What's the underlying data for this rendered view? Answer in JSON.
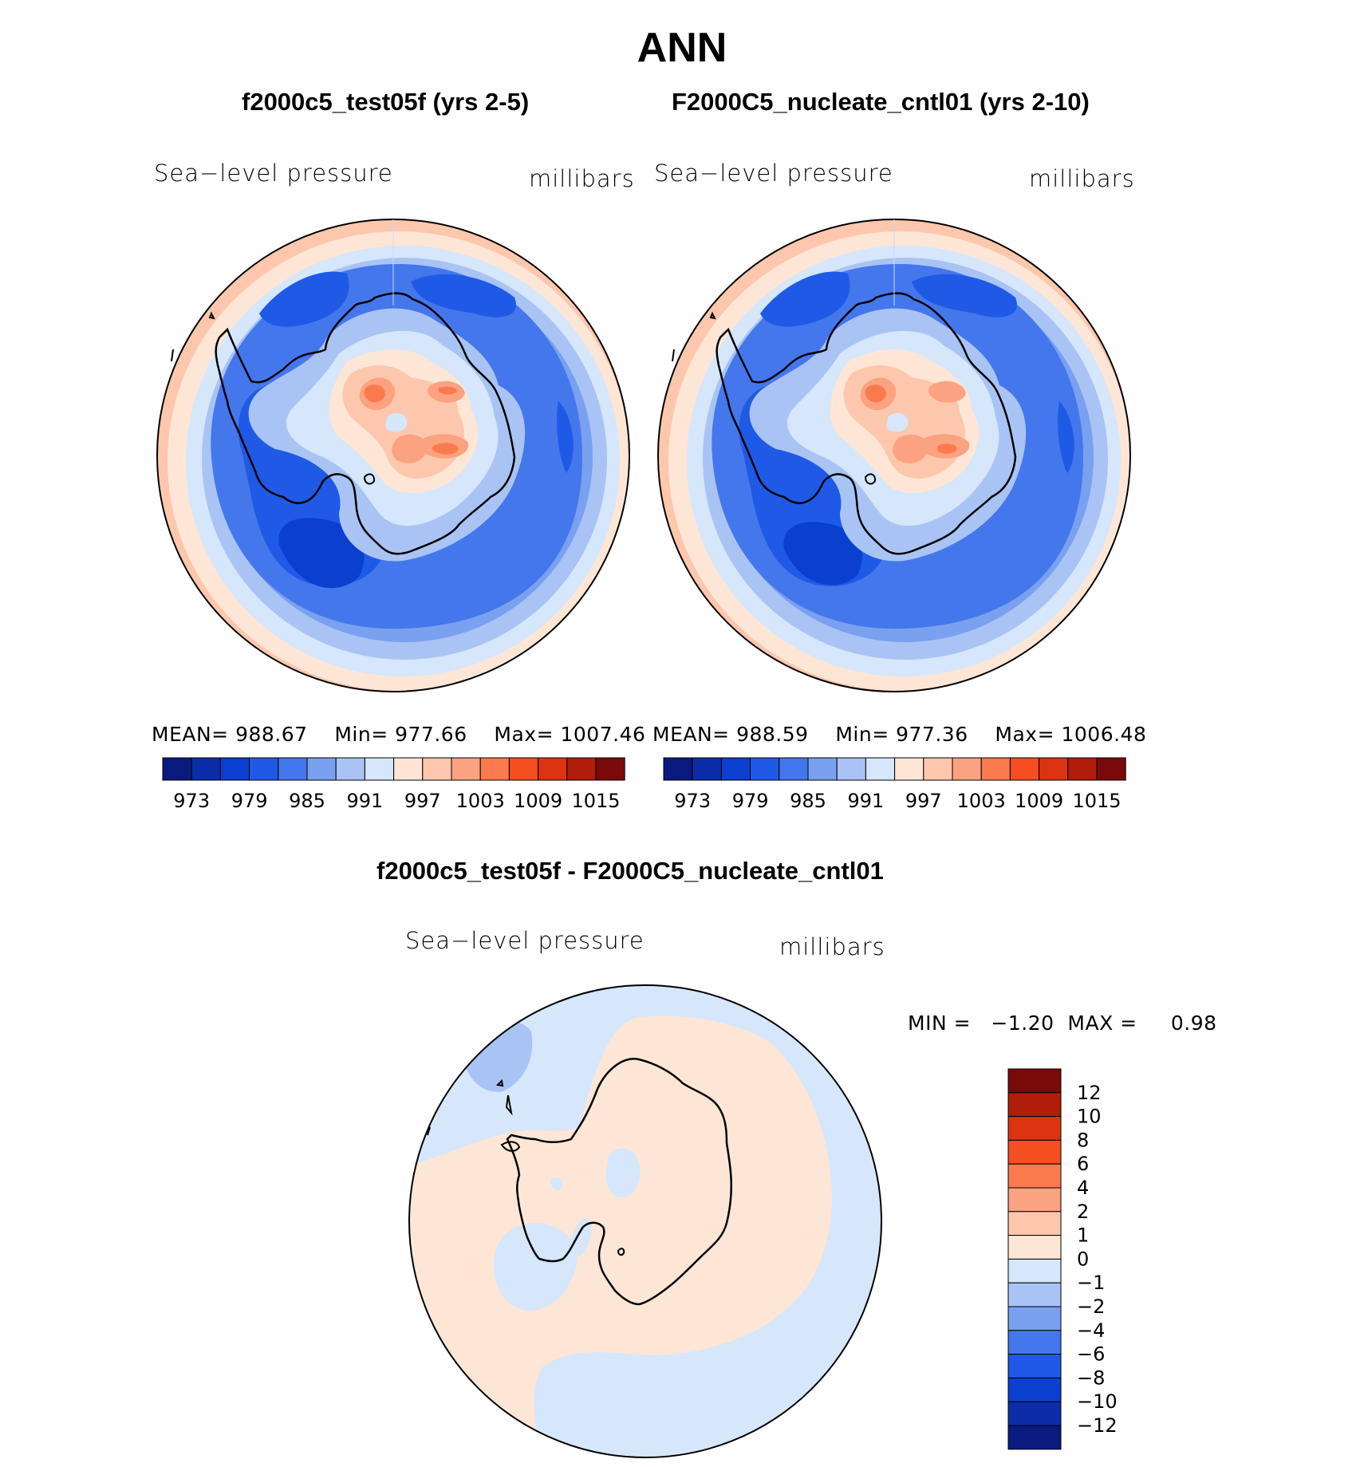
{
  "figure": {
    "title": "ANN"
  },
  "panels": [
    {
      "title": "f2000c5_test05f (yrs 2-5)",
      "variable": "Sea−level pressure",
      "units": "millibars",
      "stats": {
        "mean_label": "MEAN=",
        "mean": "988.67",
        "min_label": "Min=",
        "min": "977.66",
        "max_label": "Max=",
        "max": "1007.46"
      }
    },
    {
      "title": "F2000C5_nucleate_cntl01 (yrs 2-10)",
      "variable": "Sea−level pressure",
      "units": "millibars",
      "stats": {
        "mean_label": "MEAN=",
        "mean": "988.59",
        "min_label": "Min=",
        "min": "977.36",
        "max_label": "Max=",
        "max": "1006.48"
      }
    }
  ],
  "abs_colorbar": {
    "colors": [
      "#0a1a7e",
      "#0b2ea8",
      "#0a3fd0",
      "#1f5ae6",
      "#4477ec",
      "#7aa0f0",
      "#a9c3f4",
      "#d6e6fb",
      "#fde6d6",
      "#fcc7ad",
      "#fba281",
      "#fb7a4d",
      "#f54e1f",
      "#dc3410",
      "#b01e0a",
      "#7a0a0a"
    ],
    "tick_labels": [
      "973",
      "979",
      "985",
      "991",
      "997",
      "1003",
      "1009",
      "1015"
    ]
  },
  "diff_panel": {
    "title": "f2000c5_test05f - F2000C5_nucleate_cntl01",
    "variable": "Sea−level pressure",
    "units": "millibars",
    "minmax": {
      "min_label": "MIN =",
      "min": "−1.20",
      "max_label": "MAX =",
      "max": "0.98"
    }
  },
  "diff_colorbar": {
    "colors_top_to_bottom": [
      "#7a0a0a",
      "#b01e0a",
      "#dc3410",
      "#f54e1f",
      "#fb7a4d",
      "#fba281",
      "#fcc7ad",
      "#fde6d6",
      "#d6e6fb",
      "#a9c3f4",
      "#7aa0f0",
      "#4477ec",
      "#1f5ae6",
      "#0a3fd0",
      "#0b2ea8",
      "#0a1a7e"
    ],
    "tick_labels": [
      "12",
      "10",
      "8",
      "6",
      "4",
      "2",
      "1",
      "0",
      "−1",
      "−2",
      "−4",
      "−6",
      "−8",
      "−10",
      "−12"
    ]
  },
  "map_fills": {
    "ring_outer": "#fde6d6",
    "ring_pink": "#fcc7ad",
    "ocean_1": "#d6e6fb",
    "ocean_2": "#a9c3f4",
    "ocean_3": "#7aa0f0",
    "ocean_4": "#4477ec",
    "ocean_5": "#1f5ae6",
    "ocean_6": "#0a3fd0",
    "land_high": "#fb7a4d",
    "land_mid": "#fba281",
    "diff_pos": "#fde6d6",
    "diff_neg": "#d6e6fb",
    "diff_neg2": "#a9c3f4"
  }
}
